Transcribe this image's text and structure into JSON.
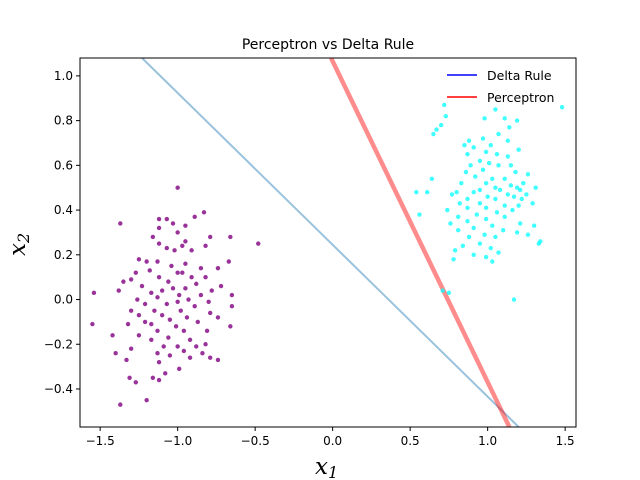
{
  "chart_data": {
    "type": "scatter",
    "title": "Perceptron vs Delta Rule",
    "xlabel": "x",
    "xlabel_sub": "1",
    "ylabel": "x",
    "ylabel_sub": "2",
    "xlim": [
      -1.63,
      1.57
    ],
    "ylim": [
      -0.57,
      1.08
    ],
    "xticks": [
      -1.5,
      -1.0,
      -0.5,
      0.0,
      0.5,
      1.0,
      1.5
    ],
    "xtick_labels": [
      "−1.5",
      "−1.0",
      "−0.5",
      "0.0",
      "0.5",
      "1.0",
      "1.5"
    ],
    "yticks": [
      -0.4,
      -0.2,
      0.0,
      0.2,
      0.4,
      0.6,
      0.8,
      1.0
    ],
    "ytick_labels": [
      "−0.4",
      "−0.2",
      "0.0",
      "0.2",
      "0.4",
      "0.6",
      "0.8",
      "1.0"
    ],
    "legend_position": "top-right",
    "legend": [
      {
        "label": "Delta Rule",
        "color": "#0000ff"
      },
      {
        "label": "Perceptron",
        "color": "#ff0000"
      }
    ],
    "lines": [
      {
        "name": "Delta Rule",
        "color": "#1f77b4",
        "opacity": 0.45,
        "x": [
          -1.23,
          1.2
        ],
        "y": [
          1.08,
          -0.57
        ]
      },
      {
        "name": "Perceptron",
        "color": "#ff0000",
        "opacity": 0.45,
        "x": [
          -0.01,
          1.14
        ],
        "y": [
          1.08,
          -0.57
        ]
      }
    ],
    "series": [
      {
        "color": "#800080",
        "points": [
          [
            -1.0,
            0.5
          ],
          [
            -0.83,
            0.39
          ],
          [
            -0.89,
            0.37
          ],
          [
            -1.12,
            0.36
          ],
          [
            -1.07,
            0.36
          ],
          [
            -1.37,
            0.34
          ],
          [
            -1.03,
            0.34
          ],
          [
            -0.95,
            0.33
          ],
          [
            -1.12,
            0.32
          ],
          [
            -1.0,
            0.3
          ],
          [
            -1.16,
            0.28
          ],
          [
            -0.79,
            0.28
          ],
          [
            -0.66,
            0.28
          ],
          [
            -0.95,
            0.26
          ],
          [
            -0.48,
            0.25
          ],
          [
            -1.12,
            0.25
          ],
          [
            -0.97,
            0.24
          ],
          [
            -0.82,
            0.24
          ],
          [
            -1.07,
            0.23
          ],
          [
            -1.02,
            0.22
          ],
          [
            -0.91,
            0.22
          ],
          [
            -1.25,
            0.18
          ],
          [
            -1.2,
            0.17
          ],
          [
            -1.13,
            0.17
          ],
          [
            -0.67,
            0.17
          ],
          [
            -0.95,
            0.16
          ],
          [
            -1.04,
            0.15
          ],
          [
            -0.74,
            0.14
          ],
          [
            -0.85,
            0.14
          ],
          [
            -1.18,
            0.13
          ],
          [
            -1.27,
            0.12
          ],
          [
            -1.0,
            0.12
          ],
          [
            -0.97,
            0.12
          ],
          [
            -0.91,
            0.1
          ],
          [
            -1.12,
            0.1
          ],
          [
            -0.82,
            0.1
          ],
          [
            -1.3,
            0.09
          ],
          [
            -1.35,
            0.08
          ],
          [
            -1.06,
            0.08
          ],
          [
            -0.88,
            0.07
          ],
          [
            -0.72,
            0.06
          ],
          [
            -1.23,
            0.06
          ],
          [
            -1.03,
            0.05
          ],
          [
            -0.95,
            0.05
          ],
          [
            -1.1,
            0.04
          ],
          [
            -0.78,
            0.04
          ],
          [
            -1.38,
            0.04
          ],
          [
            -1.54,
            0.03
          ],
          [
            -1.17,
            0.03
          ],
          [
            -0.99,
            0.02
          ],
          [
            -0.85,
            0.02
          ],
          [
            -0.65,
            0.02
          ],
          [
            -1.13,
            0.01
          ],
          [
            -1.26,
            0.0
          ],
          [
            -0.93,
            0.0
          ],
          [
            -1.0,
            -0.01
          ],
          [
            -0.8,
            -0.01
          ],
          [
            -1.21,
            -0.02
          ],
          [
            -1.07,
            -0.02
          ],
          [
            -0.89,
            -0.03
          ],
          [
            -0.65,
            -0.03
          ],
          [
            -1.3,
            -0.05
          ],
          [
            -1.15,
            -0.05
          ],
          [
            -0.98,
            -0.05
          ],
          [
            -0.79,
            -0.06
          ],
          [
            -1.25,
            -0.07
          ],
          [
            -1.1,
            -0.07
          ],
          [
            -0.94,
            -0.08
          ],
          [
            -0.74,
            -0.08
          ],
          [
            -1.05,
            -0.09
          ],
          [
            -1.21,
            -0.1
          ],
          [
            -0.87,
            -0.1
          ],
          [
            -1.55,
            -0.11
          ],
          [
            -1.32,
            -0.11
          ],
          [
            -1.17,
            -0.11
          ],
          [
            -1.01,
            -0.12
          ],
          [
            -0.66,
            -0.12
          ],
          [
            -1.13,
            -0.14
          ],
          [
            -0.96,
            -0.14
          ],
          [
            -0.81,
            -0.14
          ],
          [
            -1.42,
            -0.16
          ],
          [
            -1.25,
            -0.16
          ],
          [
            -1.06,
            -0.17
          ],
          [
            -0.92,
            -0.18
          ],
          [
            -1.17,
            -0.18
          ],
          [
            -0.82,
            -0.2
          ],
          [
            -1.0,
            -0.21
          ],
          [
            -1.09,
            -0.21
          ],
          [
            -0.88,
            -0.21
          ],
          [
            -1.3,
            -0.22
          ],
          [
            -0.96,
            -0.23
          ],
          [
            -1.13,
            -0.24
          ],
          [
            -0.84,
            -0.24
          ],
          [
            -1.4,
            -0.24
          ],
          [
            -1.05,
            -0.25
          ],
          [
            -0.92,
            -0.26
          ],
          [
            -0.79,
            -0.26
          ],
          [
            -1.33,
            -0.27
          ],
          [
            -0.74,
            -0.27
          ],
          [
            -1.12,
            -0.28
          ],
          [
            -0.99,
            -0.31
          ],
          [
            -1.08,
            -0.33
          ],
          [
            -1.16,
            -0.35
          ],
          [
            -1.31,
            -0.35
          ],
          [
            -1.12,
            -0.36
          ],
          [
            -1.27,
            -0.37
          ],
          [
            -1.2,
            -0.45
          ],
          [
            -1.37,
            -0.47
          ]
        ]
      },
      {
        "color": "#00ffff",
        "points": [
          [
            1.48,
            0.86
          ],
          [
            0.72,
            0.87
          ],
          [
            1.05,
            0.85
          ],
          [
            0.73,
            0.82
          ],
          [
            0.98,
            0.81
          ],
          [
            1.11,
            0.81
          ],
          [
            1.19,
            0.8
          ],
          [
            0.7,
            0.78
          ],
          [
            1.14,
            0.77
          ],
          [
            0.67,
            0.76
          ],
          [
            0.65,
            0.74
          ],
          [
            1.07,
            0.74
          ],
          [
            0.97,
            0.72
          ],
          [
            0.88,
            0.71
          ],
          [
            1.13,
            0.71
          ],
          [
            0.85,
            0.69
          ],
          [
            1.02,
            0.69
          ],
          [
            0.91,
            0.68
          ],
          [
            1.2,
            0.67
          ],
          [
            0.99,
            0.66
          ],
          [
            1.06,
            0.65
          ],
          [
            0.87,
            0.65
          ],
          [
            1.13,
            0.64
          ],
          [
            0.95,
            0.62
          ],
          [
            1.01,
            0.61
          ],
          [
            1.07,
            0.6
          ],
          [
            1.15,
            0.6
          ],
          [
            0.89,
            0.6
          ],
          [
            0.97,
            0.58
          ],
          [
            1.18,
            0.57
          ],
          [
            0.86,
            0.57
          ],
          [
            1.26,
            0.56
          ],
          [
            0.92,
            0.55
          ],
          [
            1.03,
            0.54
          ],
          [
            1.11,
            0.54
          ],
          [
            0.64,
            0.54
          ],
          [
            0.99,
            0.52
          ],
          [
            1.23,
            0.52
          ],
          [
            0.83,
            0.52
          ],
          [
            1.15,
            0.51
          ],
          [
            1.05,
            0.5
          ],
          [
            1.19,
            0.5
          ],
          [
            1.31,
            0.5
          ],
          [
            0.95,
            0.49
          ],
          [
            1.08,
            0.49
          ],
          [
            1.21,
            0.49
          ],
          [
            0.8,
            0.48
          ],
          [
            0.91,
            0.48
          ],
          [
            0.54,
            0.48
          ],
          [
            0.61,
            0.48
          ],
          [
            0.77,
            0.47
          ],
          [
            1.13,
            0.47
          ],
          [
            1.25,
            0.47
          ],
          [
            1.0,
            0.46
          ],
          [
            1.17,
            0.46
          ],
          [
            0.87,
            0.45
          ],
          [
            1.05,
            0.45
          ],
          [
            1.22,
            0.45
          ],
          [
            0.95,
            0.43
          ],
          [
            0.82,
            0.43
          ],
          [
            1.29,
            0.43
          ],
          [
            1.11,
            0.42
          ],
          [
            1.2,
            0.42
          ],
          [
            0.99,
            0.41
          ],
          [
            0.87,
            0.41
          ],
          [
            0.74,
            0.4
          ],
          [
            1.16,
            0.4
          ],
          [
            1.06,
            0.39
          ],
          [
            0.93,
            0.38
          ],
          [
            0.56,
            0.38
          ],
          [
            0.81,
            0.37
          ],
          [
            1.11,
            0.37
          ],
          [
            0.99,
            0.36
          ],
          [
            0.87,
            0.35
          ],
          [
            1.21,
            0.34
          ],
          [
            0.76,
            0.34
          ],
          [
            1.03,
            0.33
          ],
          [
            1.3,
            0.33
          ],
          [
            0.91,
            0.32
          ],
          [
            0.81,
            0.31
          ],
          [
            1.1,
            0.31
          ],
          [
            1.19,
            0.3
          ],
          [
            0.98,
            0.29
          ],
          [
            1.26,
            0.29
          ],
          [
            0.88,
            0.28
          ],
          [
            1.05,
            0.28
          ],
          [
            1.34,
            0.26
          ],
          [
            0.95,
            0.25
          ],
          [
            1.33,
            0.25
          ],
          [
            0.84,
            0.24
          ],
          [
            1.02,
            0.23
          ],
          [
            0.79,
            0.22
          ],
          [
            1.07,
            0.21
          ],
          [
            0.91,
            0.2
          ],
          [
            0.99,
            0.19
          ],
          [
            0.78,
            0.18
          ],
          [
            1.03,
            0.17
          ],
          [
            0.71,
            0.04
          ],
          [
            0.75,
            0.03
          ],
          [
            1.17,
            0.0
          ]
        ]
      }
    ]
  }
}
